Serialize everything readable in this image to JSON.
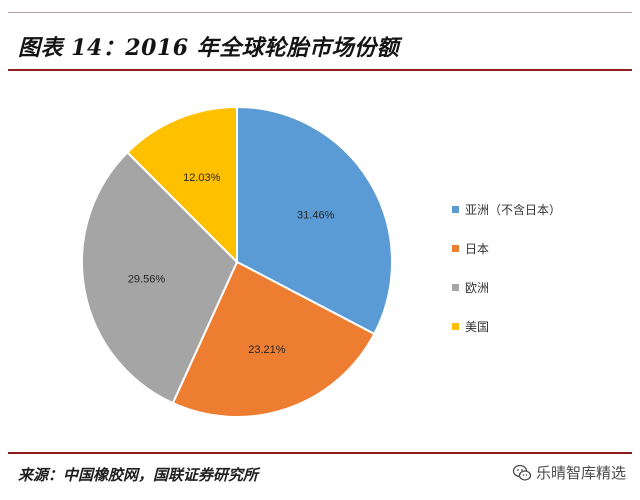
{
  "header": {
    "title": "图表 14：2016 年全球轮胎市场份额"
  },
  "chart_data": {
    "type": "pie",
    "categories": [
      "亚洲（不含日本）",
      "日本",
      "欧洲",
      "美国"
    ],
    "values": [
      31.46,
      23.21,
      29.56,
      12.03
    ],
    "data_labels": [
      "31.46%",
      "23.21%",
      "29.56%",
      "12.03%"
    ],
    "colors": [
      "#5b9bd5",
      "#ed7d31",
      "#a5a5a5",
      "#ffc000"
    ],
    "legend_position": "right",
    "start_angle": "12 o'clock",
    "direction": "clockwise"
  },
  "footer": {
    "source": "来源：中国橡胶网，国联证券研究所",
    "watermark": "乐晴智库精选",
    "watermark_icon": "wechat-icon"
  }
}
